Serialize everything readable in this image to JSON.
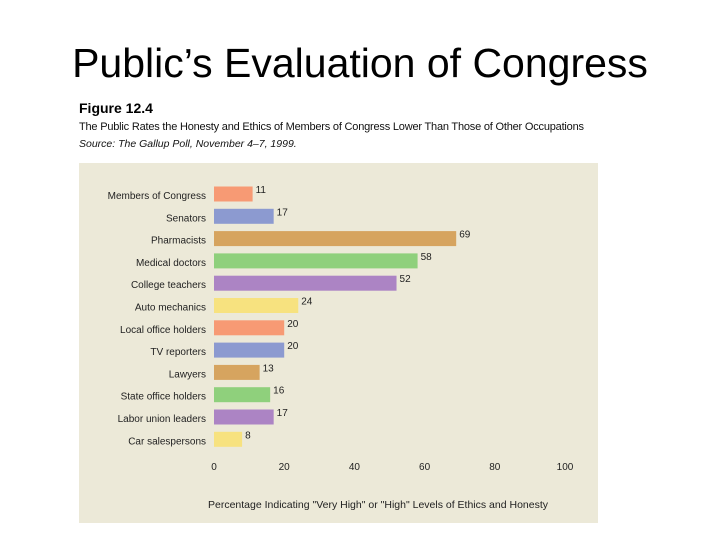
{
  "slide": {
    "title": "Public’s Evaluation of Congress"
  },
  "figure": {
    "label": "Figure 12.4",
    "caption": "The Public Rates the Honesty and Ethics of Members of Congress Lower Than Those of Other Occupations",
    "source": "Source: The Gallup Poll, November 4–7, 1999."
  },
  "chart_data": {
    "type": "bar",
    "orientation": "horizontal",
    "title": "",
    "xlabel": "Percentage Indicating \"Very High\" or \"High\" Levels of Ethics and Honesty",
    "ylabel": "",
    "xlim": [
      0,
      100
    ],
    "xticks": [
      0,
      20,
      40,
      60,
      80,
      100
    ],
    "grid": false,
    "categories": [
      "Members of Congress",
      "Senators",
      "Pharmacists",
      "Medical doctors",
      "College teachers",
      "Auto mechanics",
      "Local office holders",
      "TV reporters",
      "Lawyers",
      "State office holders",
      "Labor union leaders",
      "Car salespersons"
    ],
    "values": [
      11,
      17,
      69,
      58,
      52,
      24,
      20,
      20,
      13,
      16,
      17,
      8
    ],
    "bar_colors": [
      "#f79a74",
      "#8c9ad0",
      "#d6a45f",
      "#8fd07c",
      "#ac84c4",
      "#f7e27f",
      "#f79a74",
      "#8c9ad0",
      "#d6a45f",
      "#8fd07c",
      "#ac84c4",
      "#f7e27f"
    ]
  }
}
